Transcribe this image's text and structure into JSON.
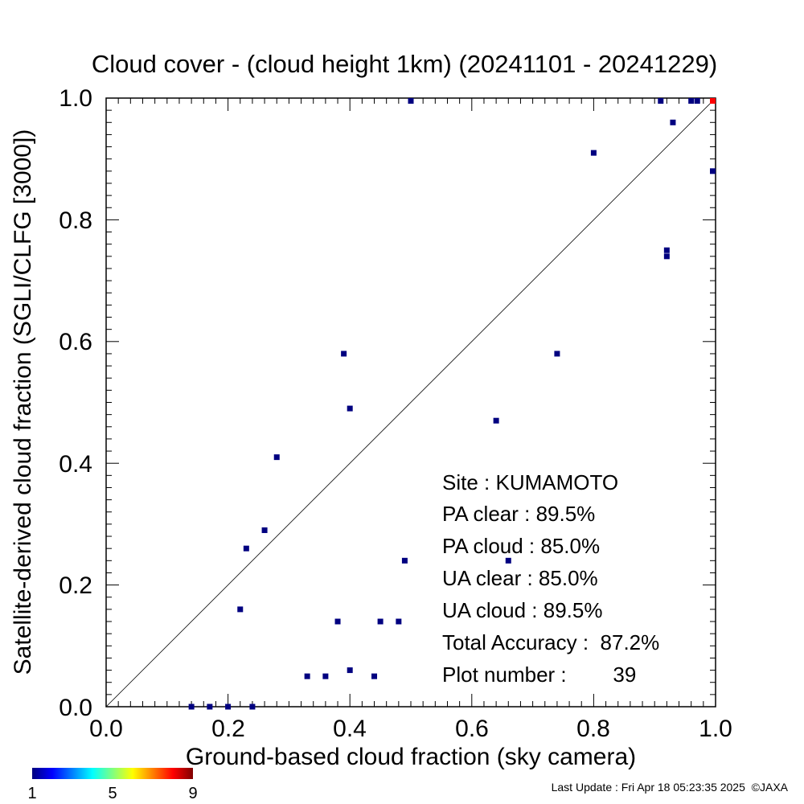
{
  "chart_data": {
    "type": "scatter",
    "title": "Cloud cover - (cloud height 1km)  (20241101 - 20241229)",
    "xlabel": "Ground-based cloud fraction (sky camera)",
    "ylabel": "Satellite-derived cloud fraction (SGLI/CLFG [3000])",
    "xlim": [
      0.0,
      1.0
    ],
    "ylim": [
      0.0,
      1.0
    ],
    "x_ticks": [
      "0.0",
      "0.2",
      "0.4",
      "0.6",
      "0.8",
      "1.0"
    ],
    "y_ticks": [
      "0.0",
      "0.2",
      "0.4",
      "0.6",
      "0.8",
      "1.0"
    ],
    "grid": false,
    "reference_line": "1:1 diagonal",
    "points": [
      {
        "x": 0.14,
        "y": 0.0,
        "count": 1
      },
      {
        "x": 0.17,
        "y": 0.0,
        "count": 1
      },
      {
        "x": 0.2,
        "y": 0.0,
        "count": 1
      },
      {
        "x": 0.24,
        "y": 0.0,
        "count": 1
      },
      {
        "x": 0.33,
        "y": 0.05,
        "count": 1
      },
      {
        "x": 0.36,
        "y": 0.05,
        "count": 1
      },
      {
        "x": 0.4,
        "y": 0.06,
        "count": 1
      },
      {
        "x": 0.44,
        "y": 0.05,
        "count": 1
      },
      {
        "x": 0.38,
        "y": 0.14,
        "count": 1
      },
      {
        "x": 0.45,
        "y": 0.14,
        "count": 1
      },
      {
        "x": 0.48,
        "y": 0.14,
        "count": 1
      },
      {
        "x": 0.22,
        "y": 0.16,
        "count": 1
      },
      {
        "x": 0.23,
        "y": 0.26,
        "count": 1
      },
      {
        "x": 0.26,
        "y": 0.29,
        "count": 1
      },
      {
        "x": 0.28,
        "y": 0.41,
        "count": 1
      },
      {
        "x": 0.49,
        "y": 0.24,
        "count": 1
      },
      {
        "x": 0.39,
        "y": 0.58,
        "count": 1
      },
      {
        "x": 0.4,
        "y": 0.49,
        "count": 1
      },
      {
        "x": 0.64,
        "y": 0.47,
        "count": 1
      },
      {
        "x": 0.66,
        "y": 0.24,
        "count": 1
      },
      {
        "x": 0.74,
        "y": 0.58,
        "count": 1
      },
      {
        "x": 0.8,
        "y": 0.91,
        "count": 1
      },
      {
        "x": 0.92,
        "y": 0.74,
        "count": 1
      },
      {
        "x": 0.92,
        "y": 0.75,
        "count": 1
      },
      {
        "x": 0.93,
        "y": 0.96,
        "count": 1
      },
      {
        "x": 1.0,
        "y": 0.88,
        "count": 1
      },
      {
        "x": 0.5,
        "y": 1.0,
        "count": 1
      },
      {
        "x": 0.91,
        "y": 1.0,
        "count": 1
      },
      {
        "x": 0.96,
        "y": 1.0,
        "count": 1
      },
      {
        "x": 0.97,
        "y": 1.0,
        "count": 1
      },
      {
        "x": 1.0,
        "y": 1.0,
        "count": 9
      }
    ],
    "stats": [
      "Site : KUMAMOTO",
      "PA clear :  89.5%",
      "PA cloud :  85.0%",
      "UA clear :  85.0%",
      "UA cloud :  89.5%",
      "Total Accuracy :  87.2%",
      "Plot number :        39"
    ],
    "colorbar": {
      "min_label": "1",
      "mid_label": "5",
      "max_label": "9",
      "min": 1,
      "max": 9
    }
  },
  "footer": "Last Update : Fri Apr 18 05:23:35 2025  ©JAXA"
}
